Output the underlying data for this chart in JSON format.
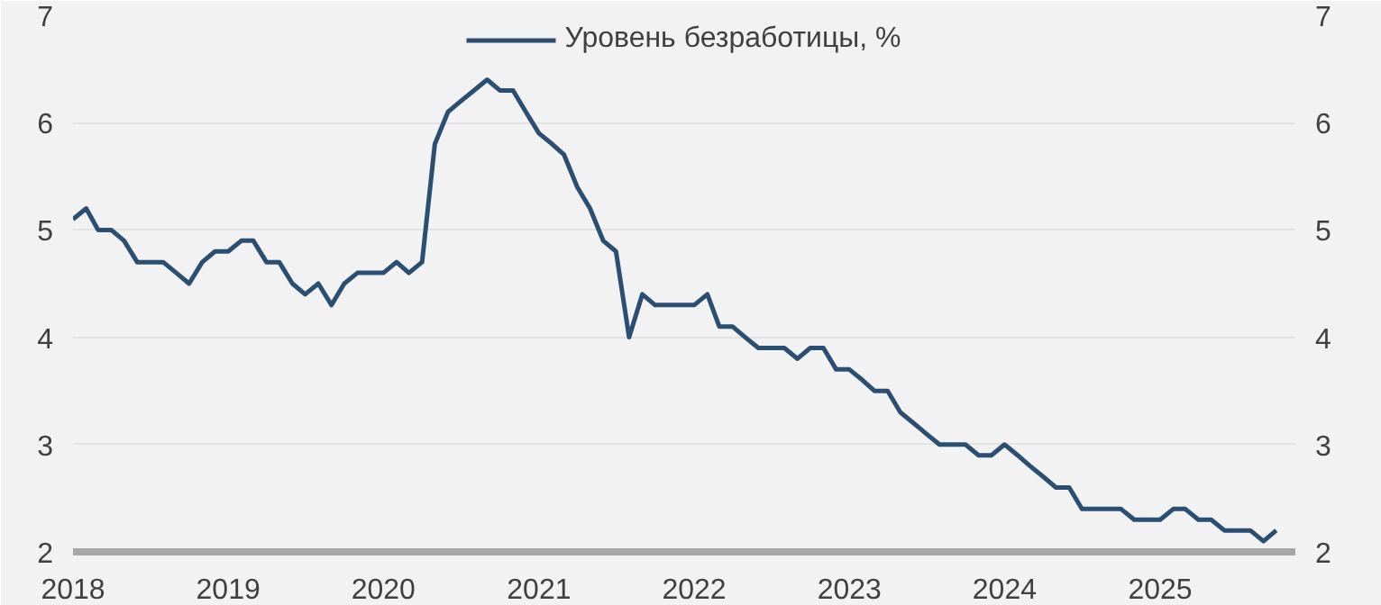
{
  "chart_data": {
    "type": "line",
    "x": [
      "2018-01",
      "2018-02",
      "2018-03",
      "2018-04",
      "2018-05",
      "2018-06",
      "2018-07",
      "2018-08",
      "2018-09",
      "2018-10",
      "2018-11",
      "2018-12",
      "2019-01",
      "2019-02",
      "2019-03",
      "2019-04",
      "2019-05",
      "2019-06",
      "2019-07",
      "2019-08",
      "2019-09",
      "2019-10",
      "2019-11",
      "2019-12",
      "2020-01",
      "2020-02",
      "2020-03",
      "2020-04",
      "2020-05",
      "2020-06",
      "2020-07",
      "2020-08",
      "2020-09",
      "2020-10",
      "2020-11",
      "2020-12",
      "2021-01",
      "2021-02",
      "2021-03",
      "2021-04",
      "2021-05",
      "2021-06",
      "2021-07",
      "2021-08",
      "2021-09",
      "2021-10",
      "2021-11",
      "2021-12",
      "2022-01",
      "2022-02",
      "2022-03",
      "2022-04",
      "2022-05",
      "2022-06",
      "2022-07",
      "2022-08",
      "2022-09",
      "2022-10",
      "2022-11",
      "2022-12",
      "2023-01",
      "2023-02",
      "2023-03",
      "2023-04",
      "2023-05",
      "2023-06",
      "2023-07",
      "2023-08",
      "2023-09",
      "2023-10",
      "2023-11",
      "2023-12",
      "2024-01",
      "2024-02",
      "2024-03",
      "2024-04",
      "2024-05",
      "2024-06",
      "2024-07",
      "2024-08",
      "2024-09",
      "2024-10",
      "2024-11",
      "2024-12",
      "2025-01",
      "2025-02",
      "2025-03",
      "2025-04",
      "2025-05",
      "2025-06",
      "2025-07",
      "2025-08",
      "2025-09",
      "2025-10"
    ],
    "series": [
      {
        "name": "Уровень безработицы, %",
        "color": "#2b4f72",
        "values": [
          5.1,
          5.2,
          5.0,
          5.0,
          4.9,
          4.7,
          4.7,
          4.7,
          4.6,
          4.5,
          4.7,
          4.8,
          4.8,
          4.9,
          4.9,
          4.7,
          4.7,
          4.5,
          4.4,
          4.5,
          4.3,
          4.5,
          4.6,
          4.6,
          4.6,
          4.7,
          4.6,
          4.7,
          5.8,
          6.1,
          6.2,
          6.3,
          6.4,
          6.3,
          6.3,
          6.1,
          5.9,
          5.8,
          5.7,
          5.4,
          5.2,
          4.9,
          4.8,
          4.0,
          4.4,
          4.3,
          4.3,
          4.3,
          4.3,
          4.4,
          4.1,
          4.1,
          4.0,
          3.9,
          3.9,
          3.9,
          3.8,
          3.9,
          3.9,
          3.7,
          3.7,
          3.6,
          3.5,
          3.5,
          3.3,
          3.2,
          3.1,
          3.0,
          3.0,
          3.0,
          2.9,
          2.9,
          3.0,
          2.9,
          2.8,
          2.7,
          2.6,
          2.6,
          2.4,
          2.4,
          2.4,
          2.4,
          2.3,
          2.3,
          2.3,
          2.4,
          2.4,
          2.3,
          2.3,
          2.2,
          2.2,
          2.2,
          2.1,
          2.2
        ]
      }
    ],
    "xlim": [
      "2018-01",
      "2025-11-15"
    ],
    "xticks": [
      "2018",
      "2019",
      "2020",
      "2021",
      "2022",
      "2023",
      "2024",
      "2025"
    ],
    "ylim": [
      2,
      7
    ],
    "yticks": [
      2,
      3,
      4,
      5,
      6,
      7
    ],
    "y2lim": [
      2,
      7
    ],
    "y2ticks": [
      2,
      3,
      4,
      5,
      6,
      7
    ],
    "grid": "y",
    "legend": "top",
    "line_style": "solid"
  }
}
